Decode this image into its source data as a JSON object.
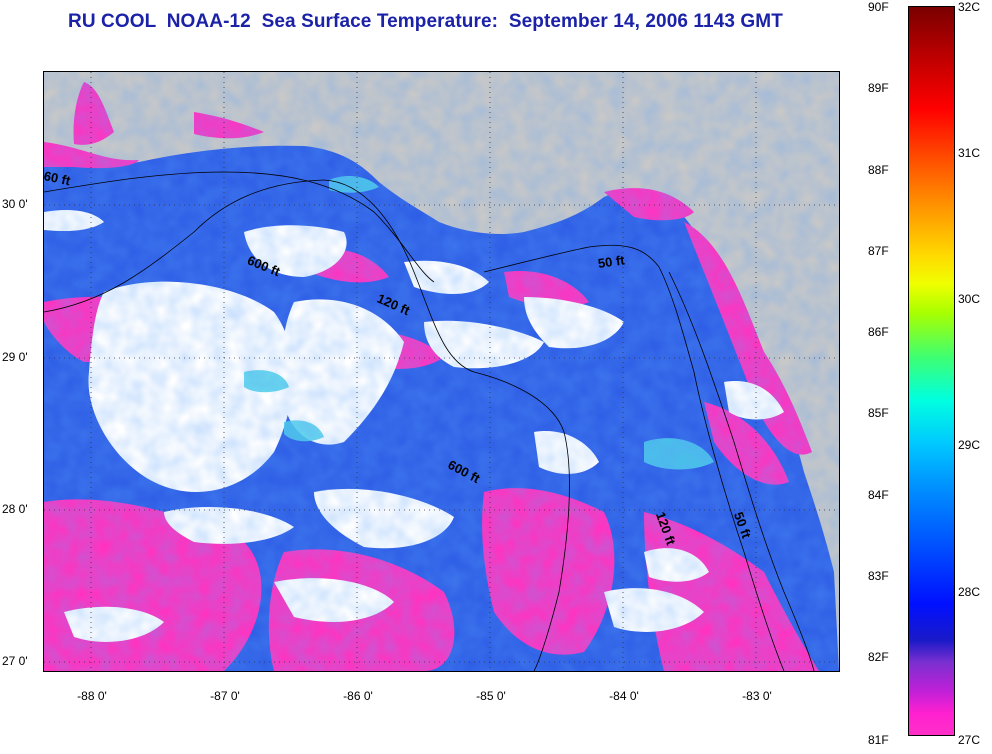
{
  "title": "RU COOL  NOAA-12  Sea Surface Temperature:  September 14, 2006 1143 GMT",
  "map": {
    "lat_labels": [
      "30 0'",
      "29 0'",
      "28 0'",
      "27 0'"
    ],
    "lon_labels": [
      "-88 0'",
      "-87 0'",
      "-86 0'",
      "-85 0'",
      "-84 0'",
      "-83 0'"
    ],
    "contour_labels": [
      "60 ft",
      "600 ft",
      "120 ft",
      "50 ft",
      "600 ft",
      "120 ft",
      "50 ft"
    ],
    "colors": {
      "land": "#c8c8c8",
      "cloud": "#ffffff",
      "warm_water": "#ff33c0",
      "cool_water": "#2a5be8",
      "deep_blue": "#1030c8",
      "cyan": "#40c8e8"
    }
  },
  "colorbar": {
    "fahrenheit_labels": [
      "90F",
      "89F",
      "88F",
      "87F",
      "86F",
      "85F",
      "84F",
      "83F",
      "82F",
      "81F"
    ],
    "celsius_labels": [
      "32C",
      "31C",
      "30C",
      "29C",
      "28C",
      "27C"
    ]
  }
}
